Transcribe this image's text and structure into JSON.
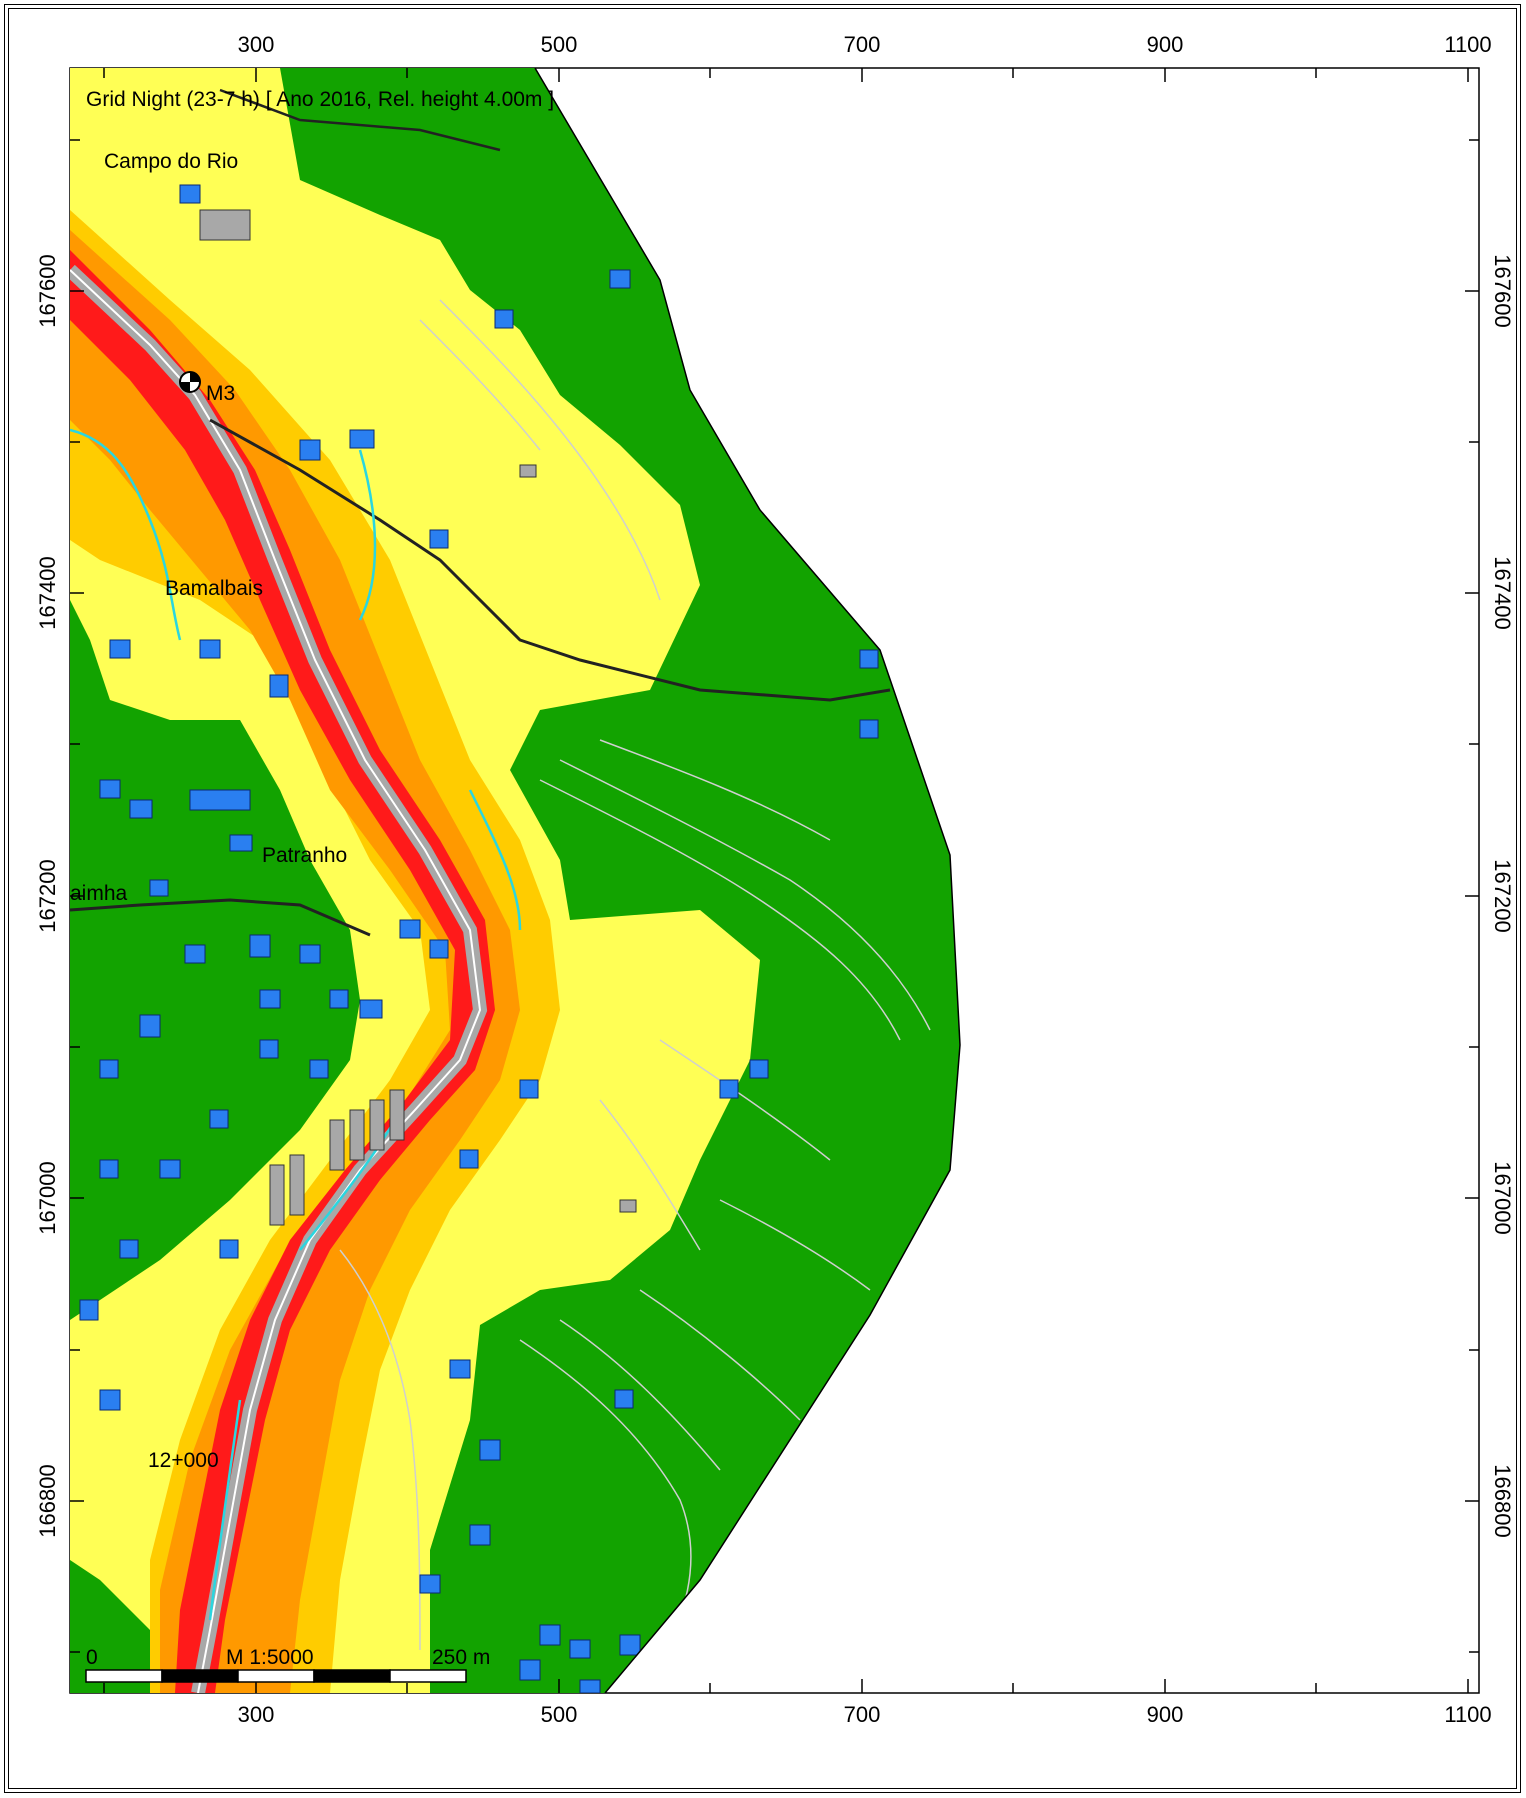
{
  "map": {
    "title": "Grid Night (23-7 h)  [ Ano 2016, Rel. height  4.00m ]",
    "x_ticks": [
      "300",
      "500",
      "700",
      "900",
      "1100"
    ],
    "y_ticks": [
      "167600",
      "167400",
      "167200",
      "167000",
      "166800"
    ],
    "places": {
      "campo_do_rio": "Campo do Rio",
      "marker": "M3",
      "bamalbais": "Bamalbais",
      "patranho": "Patranho",
      "aimha": "aimha",
      "chainage": "12+000"
    },
    "scale_bar": {
      "start": "0",
      "ratio": "M 1:5000",
      "end": "250 m"
    },
    "colors": {
      "green": "#12a300",
      "yellow": "#ffff55",
      "light_orange": "#ffcc00",
      "orange": "#ff9900",
      "red": "#ff1a1a",
      "road": "#a8a8a8",
      "building": "#2a7ff0",
      "contour": "#cfcfcf",
      "water": "#2ad6e0"
    }
  }
}
